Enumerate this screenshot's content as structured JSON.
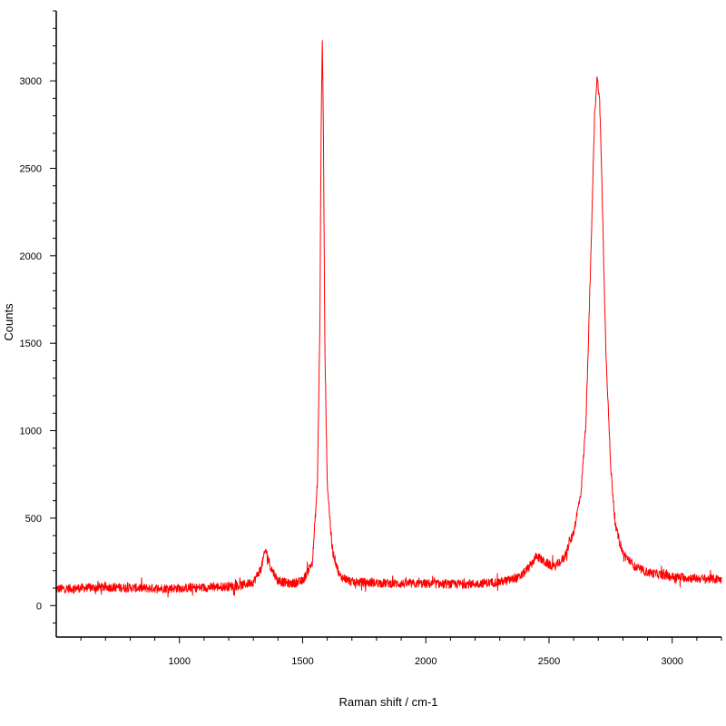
{
  "chart_data": {
    "type": "line",
    "title": "",
    "xlabel": "Raman shift / cm-1",
    "ylabel": "Counts",
    "xlim": [
      500,
      3200
    ],
    "ylim": [
      -180,
      3400
    ],
    "x_ticks": [
      1000,
      1500,
      2000,
      2500,
      3000
    ],
    "y_ticks": [
      0,
      500,
      1000,
      1500,
      2000,
      2500,
      3000
    ],
    "x_tick_labels": [
      "1000",
      "1500",
      "2000",
      "2500",
      "3000"
    ],
    "y_tick_labels": [
      "0",
      "500",
      "1000",
      "1500",
      "2000",
      "2500",
      "3000"
    ],
    "grid": false,
    "legend": "none",
    "series": [
      {
        "color": "#ff0000",
        "noise_amplitude": 25,
        "points": [
          [
            500,
            95
          ],
          [
            600,
            100
          ],
          [
            700,
            105
          ],
          [
            800,
            102
          ],
          [
            900,
            98
          ],
          [
            1000,
            100
          ],
          [
            1100,
            103
          ],
          [
            1200,
            110
          ],
          [
            1250,
            115
          ],
          [
            1300,
            135
          ],
          [
            1330,
            210
          ],
          [
            1350,
            320
          ],
          [
            1370,
            220
          ],
          [
            1400,
            140
          ],
          [
            1450,
            125
          ],
          [
            1500,
            140
          ],
          [
            1540,
            250
          ],
          [
            1560,
            700
          ],
          [
            1570,
            1600
          ],
          [
            1575,
            2700
          ],
          [
            1580,
            3250
          ],
          [
            1585,
            2600
          ],
          [
            1590,
            1500
          ],
          [
            1600,
            700
          ],
          [
            1620,
            320
          ],
          [
            1650,
            170
          ],
          [
            1700,
            135
          ],
          [
            1800,
            130
          ],
          [
            1900,
            125
          ],
          [
            2000,
            125
          ],
          [
            2100,
            122
          ],
          [
            2200,
            125
          ],
          [
            2300,
            135
          ],
          [
            2380,
            160
          ],
          [
            2420,
            220
          ],
          [
            2450,
            285
          ],
          [
            2480,
            250
          ],
          [
            2520,
            220
          ],
          [
            2560,
            270
          ],
          [
            2600,
            420
          ],
          [
            2630,
            650
          ],
          [
            2650,
            1050
          ],
          [
            2670,
            2000
          ],
          [
            2685,
            2800
          ],
          [
            2695,
            3020
          ],
          [
            2705,
            2900
          ],
          [
            2715,
            2400
          ],
          [
            2730,
            1500
          ],
          [
            2750,
            800
          ],
          [
            2770,
            450
          ],
          [
            2800,
            300
          ],
          [
            2850,
            220
          ],
          [
            2900,
            190
          ],
          [
            3000,
            165
          ],
          [
            3100,
            155
          ],
          [
            3200,
            150
          ]
        ]
      }
    ]
  }
}
